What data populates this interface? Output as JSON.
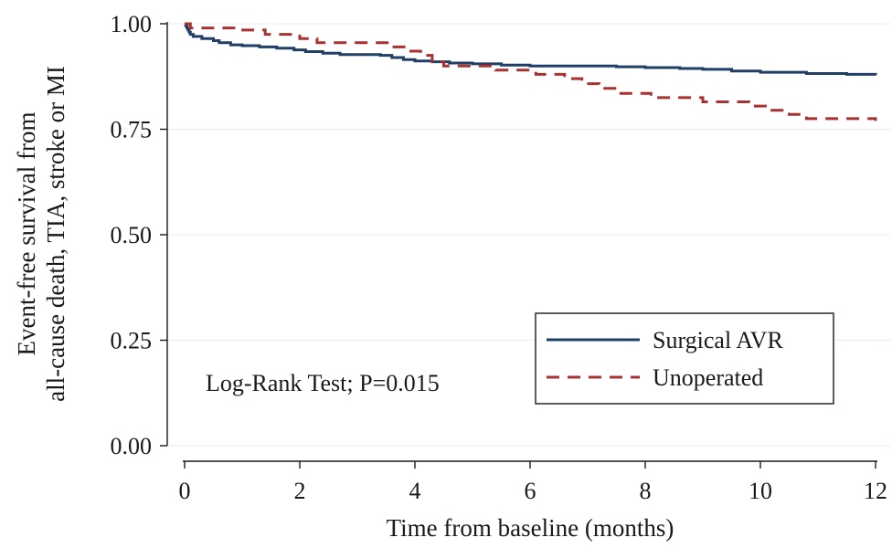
{
  "chart_data": {
    "type": "line",
    "title": "",
    "xlabel": "Time from baseline (months)",
    "ylabel_lines": [
      "Event-free survival from",
      "all-cause death, TIA, stroke or MI"
    ],
    "xlim": [
      0,
      12
    ],
    "ylim": [
      0,
      1
    ],
    "x_ticks": [
      0,
      2,
      4,
      6,
      8,
      10,
      12
    ],
    "x_tick_labels": [
      "0",
      "2",
      "4",
      "6",
      "8",
      "10",
      "12"
    ],
    "y_ticks": [
      0,
      0.25,
      0.5,
      0.75,
      1
    ],
    "y_tick_labels": [
      "0.00",
      "0.25",
      "0.50",
      "0.75",
      "1.00"
    ],
    "grid": "horizontal",
    "legend_position": "bottom-right",
    "annotation": "Log-Rank Test; P=0.015",
    "series": [
      {
        "name": "Surgical AVR",
        "color": "#1f3f66",
        "dash": "solid",
        "points": [
          [
            0,
            1.0
          ],
          [
            0.02,
            0.995
          ],
          [
            0.04,
            0.99
          ],
          [
            0.06,
            0.985
          ],
          [
            0.08,
            0.98
          ],
          [
            0.1,
            0.975
          ],
          [
            0.15,
            0.97
          ],
          [
            0.3,
            0.965
          ],
          [
            0.5,
            0.96
          ],
          [
            0.6,
            0.955
          ],
          [
            0.8,
            0.95
          ],
          [
            1.0,
            0.948
          ],
          [
            1.3,
            0.945
          ],
          [
            1.6,
            0.942
          ],
          [
            1.9,
            0.938
          ],
          [
            2.1,
            0.934
          ],
          [
            2.4,
            0.93
          ],
          [
            2.7,
            0.927
          ],
          [
            3.0,
            0.927
          ],
          [
            3.4,
            0.925
          ],
          [
            3.6,
            0.92
          ],
          [
            3.8,
            0.915
          ],
          [
            4.0,
            0.912
          ],
          [
            4.3,
            0.91
          ],
          [
            4.6,
            0.907
          ],
          [
            5.0,
            0.905
          ],
          [
            5.5,
            0.902
          ],
          [
            6.0,
            0.9
          ],
          [
            6.8,
            0.9
          ],
          [
            7.5,
            0.898
          ],
          [
            8.0,
            0.896
          ],
          [
            8.6,
            0.894
          ],
          [
            9.0,
            0.892
          ],
          [
            9.5,
            0.888
          ],
          [
            10.0,
            0.885
          ],
          [
            10.8,
            0.882
          ],
          [
            11.5,
            0.88
          ],
          [
            12.0,
            0.878
          ]
        ]
      },
      {
        "name": "Unoperated",
        "color": "#a83232",
        "dash": "dashed",
        "points": [
          [
            0,
            1.0
          ],
          [
            0.1,
            0.99
          ],
          [
            0.9,
            0.985
          ],
          [
            1.4,
            0.975
          ],
          [
            2.0,
            0.965
          ],
          [
            2.3,
            0.955
          ],
          [
            3.6,
            0.945
          ],
          [
            3.9,
            0.935
          ],
          [
            4.1,
            0.925
          ],
          [
            4.3,
            0.91
          ],
          [
            4.5,
            0.9
          ],
          [
            5.4,
            0.89
          ],
          [
            6.1,
            0.88
          ],
          [
            6.6,
            0.87
          ],
          [
            6.9,
            0.858
          ],
          [
            7.2,
            0.847
          ],
          [
            7.5,
            0.835
          ],
          [
            8.1,
            0.825
          ],
          [
            9.0,
            0.815
          ],
          [
            9.8,
            0.805
          ],
          [
            10.2,
            0.795
          ],
          [
            10.5,
            0.785
          ],
          [
            10.8,
            0.775
          ],
          [
            12.0,
            0.77
          ]
        ]
      }
    ]
  }
}
